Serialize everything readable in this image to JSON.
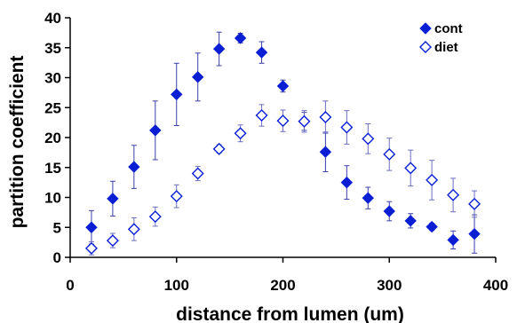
{
  "chart_data": {
    "type": "scatter",
    "xlabel": "distance from lumen (um)",
    "ylabel": "partition coefficient",
    "xlim": [
      0,
      400
    ],
    "ylim": [
      0,
      40
    ],
    "xticks": [
      "0",
      "100",
      "200",
      "300",
      "400"
    ],
    "yticks": [
      "0",
      "5",
      "10",
      "15",
      "20",
      "25",
      "30",
      "35",
      "40"
    ],
    "grid": false,
    "legend_position": "top-right",
    "series": [
      {
        "name": "cont",
        "marker": "filled-diamond",
        "color": "#0a1fd4",
        "x": [
          20,
          40,
          60,
          80,
          100,
          120,
          140,
          160,
          180,
          200,
          220,
          240,
          260,
          280,
          300,
          320,
          340,
          360,
          380
        ],
        "y": [
          5.0,
          9.8,
          15.1,
          21.2,
          27.2,
          30.1,
          34.8,
          36.6,
          34.2,
          28.6,
          22.7,
          17.6,
          12.5,
          9.9,
          7.7,
          6.1,
          5.1,
          2.9,
          3.9
        ],
        "err": [
          2.8,
          2.9,
          3.6,
          4.9,
          5.2,
          4.0,
          2.8,
          0.8,
          1.8,
          1.0,
          1.5,
          3.3,
          2.8,
          1.8,
          1.6,
          1.2,
          0.6,
          1.5,
          3.2
        ]
      },
      {
        "name": "diet",
        "marker": "open-diamond",
        "color": "#0a1fd4",
        "x": [
          20,
          40,
          60,
          80,
          100,
          120,
          140,
          160,
          180,
          200,
          220,
          240,
          260,
          280,
          300,
          320,
          340,
          360,
          380
        ],
        "y": [
          1.5,
          2.8,
          4.7,
          6.8,
          10.2,
          14.0,
          18.1,
          20.7,
          23.7,
          22.8,
          22.7,
          23.4,
          21.7,
          19.8,
          17.2,
          14.9,
          12.9,
          10.4,
          8.9
        ],
        "err": [
          1.1,
          1.2,
          1.9,
          1.6,
          1.9,
          1.2,
          0.7,
          1.4,
          1.8,
          1.8,
          1.8,
          2.7,
          2.8,
          2.5,
          2.7,
          3.0,
          3.3,
          2.8,
          2.2
        ]
      }
    ]
  }
}
